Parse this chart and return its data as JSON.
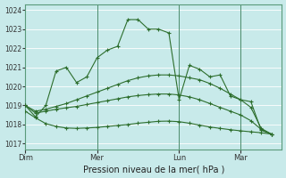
{
  "xlabel": "Pression niveau de la mer( hPa )",
  "bg_color": "#c8eaea",
  "grid_color": "#a8d8d8",
  "line_color": "#2d6e2d",
  "ylim": [
    1016.7,
    1024.3
  ],
  "yticks": [
    1017,
    1018,
    1019,
    1020,
    1021,
    1022,
    1023,
    1024
  ],
  "day_labels": [
    "Dim",
    "Mer",
    "Lun",
    "Mar"
  ],
  "day_positions": [
    0,
    7,
    15,
    21
  ],
  "xlim": [
    0,
    25
  ],
  "n_points": 25,
  "line1": [
    1019.0,
    1018.4,
    1019.0,
    1020.8,
    1021.0,
    1020.2,
    1020.5,
    1021.5,
    1021.9,
    1022.1,
    1023.5,
    1023.5,
    1023.0,
    1023.0,
    1022.8,
    1019.3,
    1021.1,
    1020.9,
    1020.5,
    1020.6,
    1019.5,
    1019.3,
    1019.2,
    1017.7,
    1017.5
  ],
  "line2": [
    1019.0,
    1018.7,
    1018.8,
    1018.95,
    1019.1,
    1019.3,
    1019.5,
    1019.7,
    1019.9,
    1020.1,
    1020.3,
    1020.45,
    1020.55,
    1020.6,
    1020.6,
    1020.55,
    1020.45,
    1020.35,
    1020.15,
    1019.9,
    1019.6,
    1019.3,
    1018.9,
    1017.8,
    1017.5
  ],
  "line3": [
    1019.0,
    1018.6,
    1018.7,
    1018.8,
    1018.88,
    1018.95,
    1019.05,
    1019.15,
    1019.25,
    1019.35,
    1019.45,
    1019.52,
    1019.57,
    1019.6,
    1019.6,
    1019.55,
    1019.45,
    1019.3,
    1019.1,
    1018.9,
    1018.7,
    1018.5,
    1018.2,
    1017.75,
    1017.5
  ],
  "line4": [
    1018.7,
    1018.35,
    1018.05,
    1017.9,
    1017.82,
    1017.8,
    1017.82,
    1017.85,
    1017.9,
    1017.95,
    1018.0,
    1018.07,
    1018.12,
    1018.17,
    1018.18,
    1018.15,
    1018.07,
    1017.97,
    1017.87,
    1017.8,
    1017.73,
    1017.67,
    1017.62,
    1017.57,
    1017.5
  ],
  "figsize": [
    3.2,
    2.0
  ],
  "dpi": 100
}
